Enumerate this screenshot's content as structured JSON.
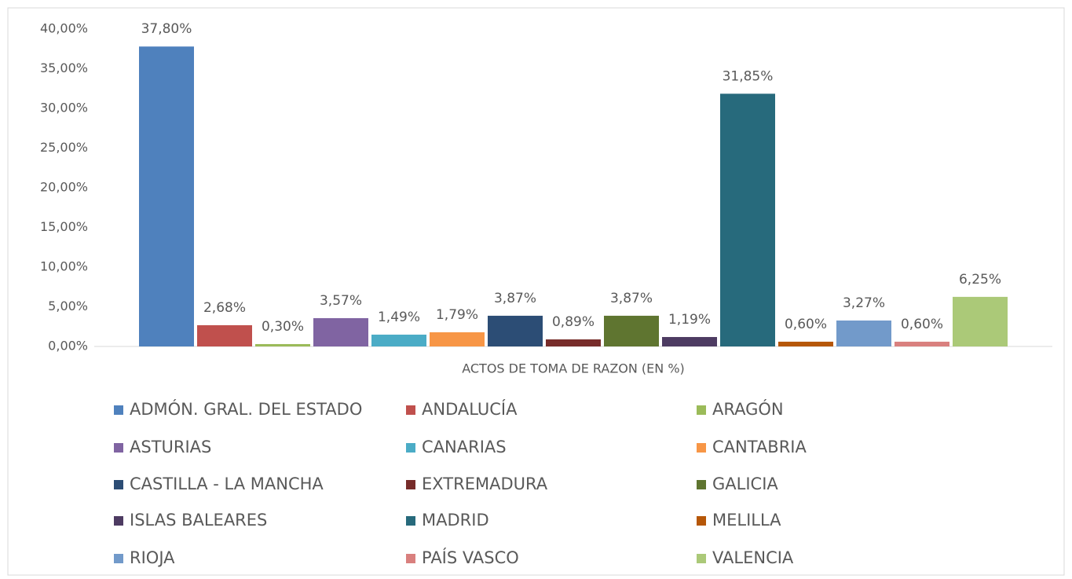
{
  "chart_data": {
    "type": "bar",
    "categories": [
      "ACTOS DE TOMA DE RAZON (EN %)"
    ],
    "series": [
      {
        "name": "ADMÓN. GRAL. DEL ESTADO",
        "color": "#4f81bd",
        "values": [
          37.8
        ],
        "value_labels": [
          "37,80%"
        ]
      },
      {
        "name": "ANDALUCÍA",
        "color": "#c0504d",
        "values": [
          2.68
        ],
        "value_labels": [
          "2,68%"
        ]
      },
      {
        "name": "ARAGÓN",
        "color": "#9bbb59",
        "values": [
          0.3
        ],
        "value_labels": [
          "0,30%"
        ]
      },
      {
        "name": "ASTURIAS",
        "color": "#8064a2",
        "values": [
          3.57
        ],
        "value_labels": [
          "3,57%"
        ]
      },
      {
        "name": "CANARIAS",
        "color": "#4bacc6",
        "values": [
          1.49
        ],
        "value_labels": [
          "1,49%"
        ]
      },
      {
        "name": "CANTABRIA",
        "color": "#f79646",
        "values": [
          1.79
        ],
        "value_labels": [
          "1,79%"
        ]
      },
      {
        "name": "CASTILLA - LA MANCHA",
        "color": "#2c4d75",
        "values": [
          3.87
        ],
        "value_labels": [
          "3,87%"
        ]
      },
      {
        "name": "EXTREMADURA",
        "color": "#772c2a",
        "values": [
          0.89
        ],
        "value_labels": [
          "0,89%"
        ]
      },
      {
        "name": "GALICIA",
        "color": "#5f7530",
        "values": [
          3.87
        ],
        "value_labels": [
          "3,87%"
        ]
      },
      {
        "name": "ISLAS BALEARES",
        "color": "#4d3b62",
        "values": [
          1.19
        ],
        "value_labels": [
          "1,19%"
        ]
      },
      {
        "name": "MADRID",
        "color": "#276a7c",
        "values": [
          31.85
        ],
        "value_labels": [
          "31,85%"
        ]
      },
      {
        "name": "MELILLA",
        "color": "#b65708",
        "values": [
          0.6
        ],
        "value_labels": [
          "0,60%"
        ]
      },
      {
        "name": "RIOJA",
        "color": "#729aca",
        "values": [
          3.27
        ],
        "value_labels": [
          "3,27%"
        ]
      },
      {
        "name": "PAÍS VASCO",
        "color": "#d9807e",
        "values": [
          0.6
        ],
        "value_labels": [
          "0,60%"
        ]
      },
      {
        "name": "VALENCIA",
        "color": "#abc978",
        "values": [
          6.25
        ],
        "value_labels": [
          "6,25%"
        ]
      }
    ],
    "ylim": [
      0,
      40
    ],
    "yticks": [
      {
        "value": 0,
        "label": "0,00%"
      },
      {
        "value": 5,
        "label": "5,00%"
      },
      {
        "value": 10,
        "label": "10,00%"
      },
      {
        "value": 15,
        "label": "15,00%"
      },
      {
        "value": 20,
        "label": "20,00%"
      },
      {
        "value": 25,
        "label": "25,00%"
      },
      {
        "value": 30,
        "label": "30,00%"
      },
      {
        "value": 35,
        "label": "35,00%"
      },
      {
        "value": 40,
        "label": "40,00%"
      }
    ],
    "grid": false
  }
}
